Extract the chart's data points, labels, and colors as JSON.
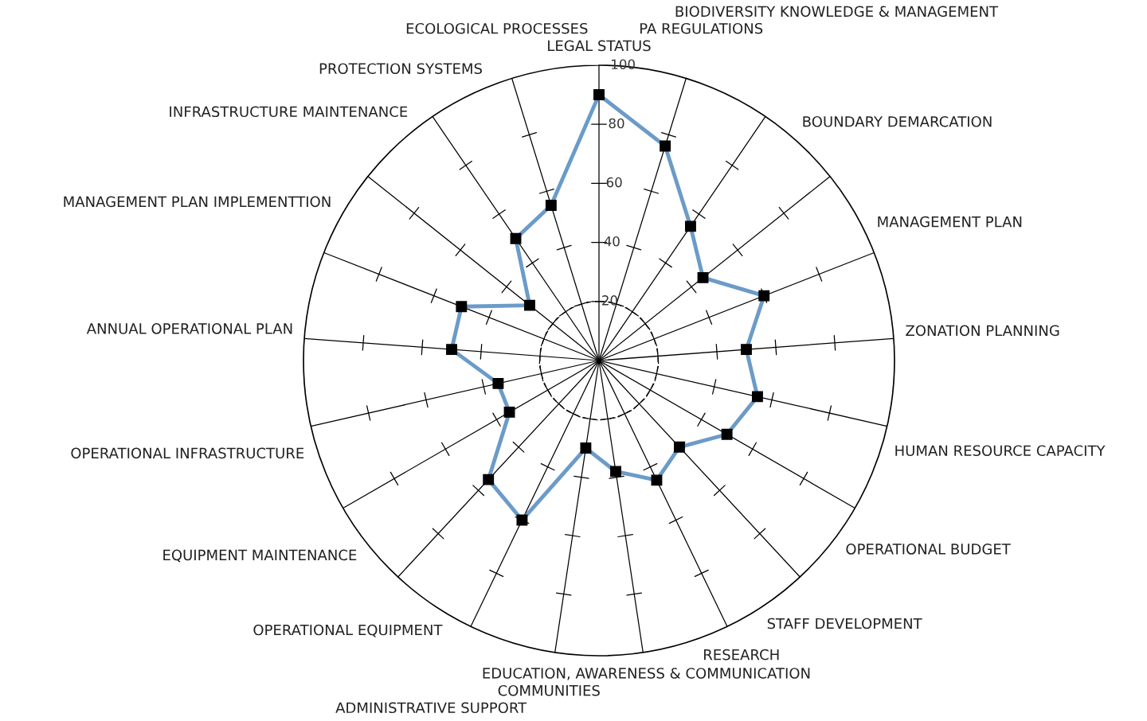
{
  "chart_data": {
    "type": "radar",
    "categories": [
      "LEGAL STATUS",
      "PA REGULATIONS",
      "BIODIVERSITY KNOWLEDGE & MANAGEMENT",
      "BOUNDARY DEMARCATION",
      "MANAGEMENT PLAN",
      "ZONATION PLANNING",
      "HUMAN RESOURCE CAPACITY",
      "OPERATIONAL BUDGET",
      "STAFF DEVELOPMENT",
      "RESEARCH",
      "EDUCATION, AWARENESS & COMMUNICATION",
      "COMMUNITIES",
      "ADMINISTRATIVE SUPPORT",
      "OPERATIONAL EQUIPMENT",
      "EQUIPMENT MAINTENANCE",
      "OPERATIONAL INFRASTRUCTURE",
      "ANNUAL OPERATIONAL PLAN",
      "MANAGEMENT PLAN IMPLEMENTTION",
      "INFRASTRUCTURE MAINTENANCE",
      "PROTECTION SYSTEMS",
      "ECOLOGICAL PROCESSES"
    ],
    "series": [
      {
        "color": "#6b9bc8",
        "values": [
          90,
          76,
          55,
          45,
          60,
          50,
          55,
          50,
          40,
          45,
          38,
          30,
          60,
          55,
          35,
          35,
          50,
          50,
          30,
          50,
          55
        ]
      }
    ],
    "ylim": [
      0,
      100
    ],
    "yticks": [
      20,
      40,
      60,
      80,
      100
    ],
    "marker": "square",
    "line_style": "solid",
    "grid": true
  }
}
